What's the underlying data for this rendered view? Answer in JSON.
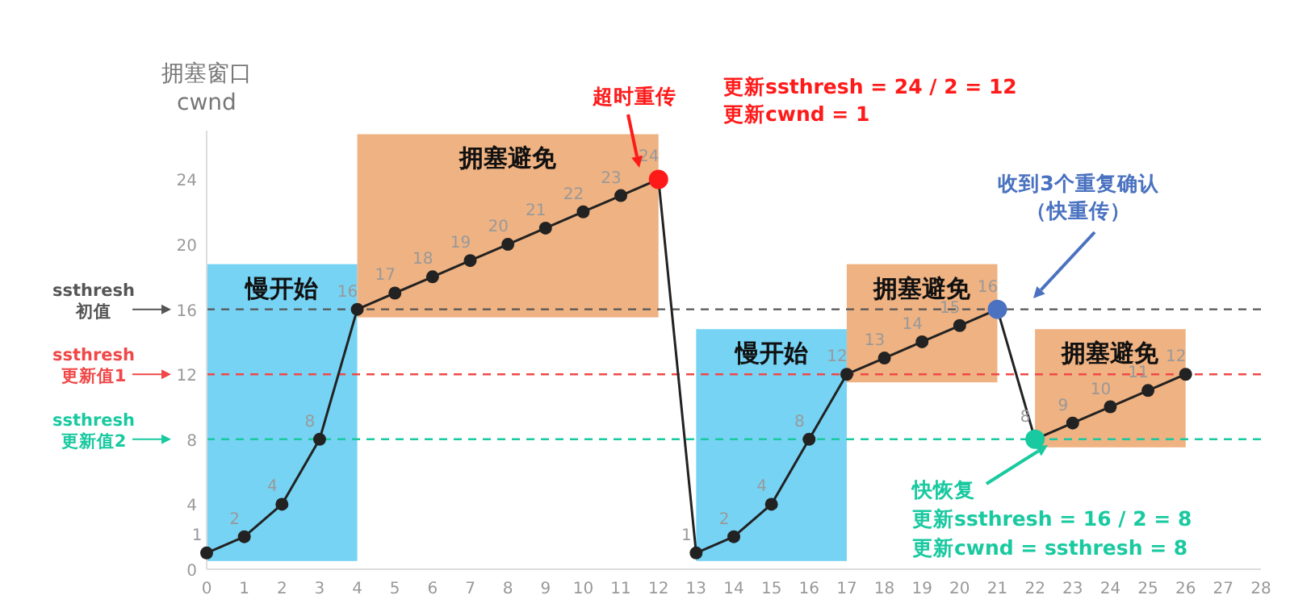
{
  "chart_data": {
    "type": "line",
    "ylabel": "拥塞窗口\ncwnd",
    "x": [
      0,
      1,
      2,
      3,
      4,
      5,
      6,
      7,
      8,
      9,
      10,
      11,
      12,
      13,
      14,
      15,
      16,
      17,
      18,
      19,
      20,
      21,
      22,
      23,
      24,
      25,
      26
    ],
    "series": [
      {
        "color": "#222222",
        "colors": [
          "#222222",
          "#222222",
          "#222222",
          "#222222",
          "#222222",
          "#222222",
          "#222222",
          "#222222",
          "#222222",
          "#222222",
          "#222222",
          "#222222",
          "#ff1a1a",
          "#222222",
          "#222222",
          "#222222",
          "#222222",
          "#222222",
          "#222222",
          "#222222",
          "#222222",
          "#4a72c0",
          "#19c9a0",
          "#222222",
          "#222222",
          "#222222",
          "#222222"
        ],
        "values": [
          1,
          2,
          4,
          8,
          16,
          17,
          18,
          19,
          20,
          21,
          22,
          23,
          24,
          1,
          2,
          4,
          8,
          12,
          13,
          14,
          15,
          16,
          8,
          9,
          10,
          11,
          12
        ]
      }
    ],
    "data_labels": true,
    "marker": "circle",
    "line_style": "solid",
    "xlim": [
      0,
      28
    ],
    "xticks": [
      0,
      1,
      2,
      3,
      4,
      5,
      6,
      7,
      8,
      9,
      10,
      11,
      12,
      13,
      14,
      15,
      16,
      17,
      18,
      19,
      20,
      21,
      22,
      23,
      24,
      25,
      26,
      27,
      28
    ],
    "ylim": [
      0,
      27
    ],
    "yticks": [
      0,
      4,
      8,
      12,
      16,
      20,
      24
    ],
    "grid": false,
    "ref_lines": [
      {
        "axis": "y",
        "value": 16,
        "label": "ssthresh\n初值",
        "color": "#555555",
        "line_style": "dashed"
      },
      {
        "axis": "y",
        "value": 12,
        "label": "ssthresh\n更新值1",
        "color": "#f04848",
        "line_style": "dashed"
      },
      {
        "axis": "y",
        "value": 8,
        "label": "ssthresh\n更新值2",
        "color": "#19c9a0",
        "line_style": "dashed"
      }
    ],
    "bands": [
      {
        "axis": "x",
        "from": 0,
        "to": 4,
        "label": "慢开始",
        "color": "#5ecbf2"
      },
      {
        "axis": "x",
        "from": 4,
        "to": 12,
        "label": "拥塞避免",
        "color": "#eca46c"
      },
      {
        "axis": "x",
        "from": 13,
        "to": 17,
        "label": "慢开始",
        "color": "#5ecbf2"
      },
      {
        "axis": "x",
        "from": 17,
        "to": 21,
        "label": "拥塞避免",
        "color": "#eca46c"
      },
      {
        "axis": "x",
        "from": 22,
        "to": 26,
        "label": "拥塞避免",
        "color": "#eca46c"
      }
    ],
    "annotations": [
      "超时重传",
      "更新ssthresh = 24 / 2 = 12",
      "更新cwnd = 1",
      "收到3个重复确认",
      "（快重传）",
      "快恢复",
      "更新ssthresh = 16 / 2 = 8",
      "更新cwnd = ssthresh = 8"
    ]
  }
}
